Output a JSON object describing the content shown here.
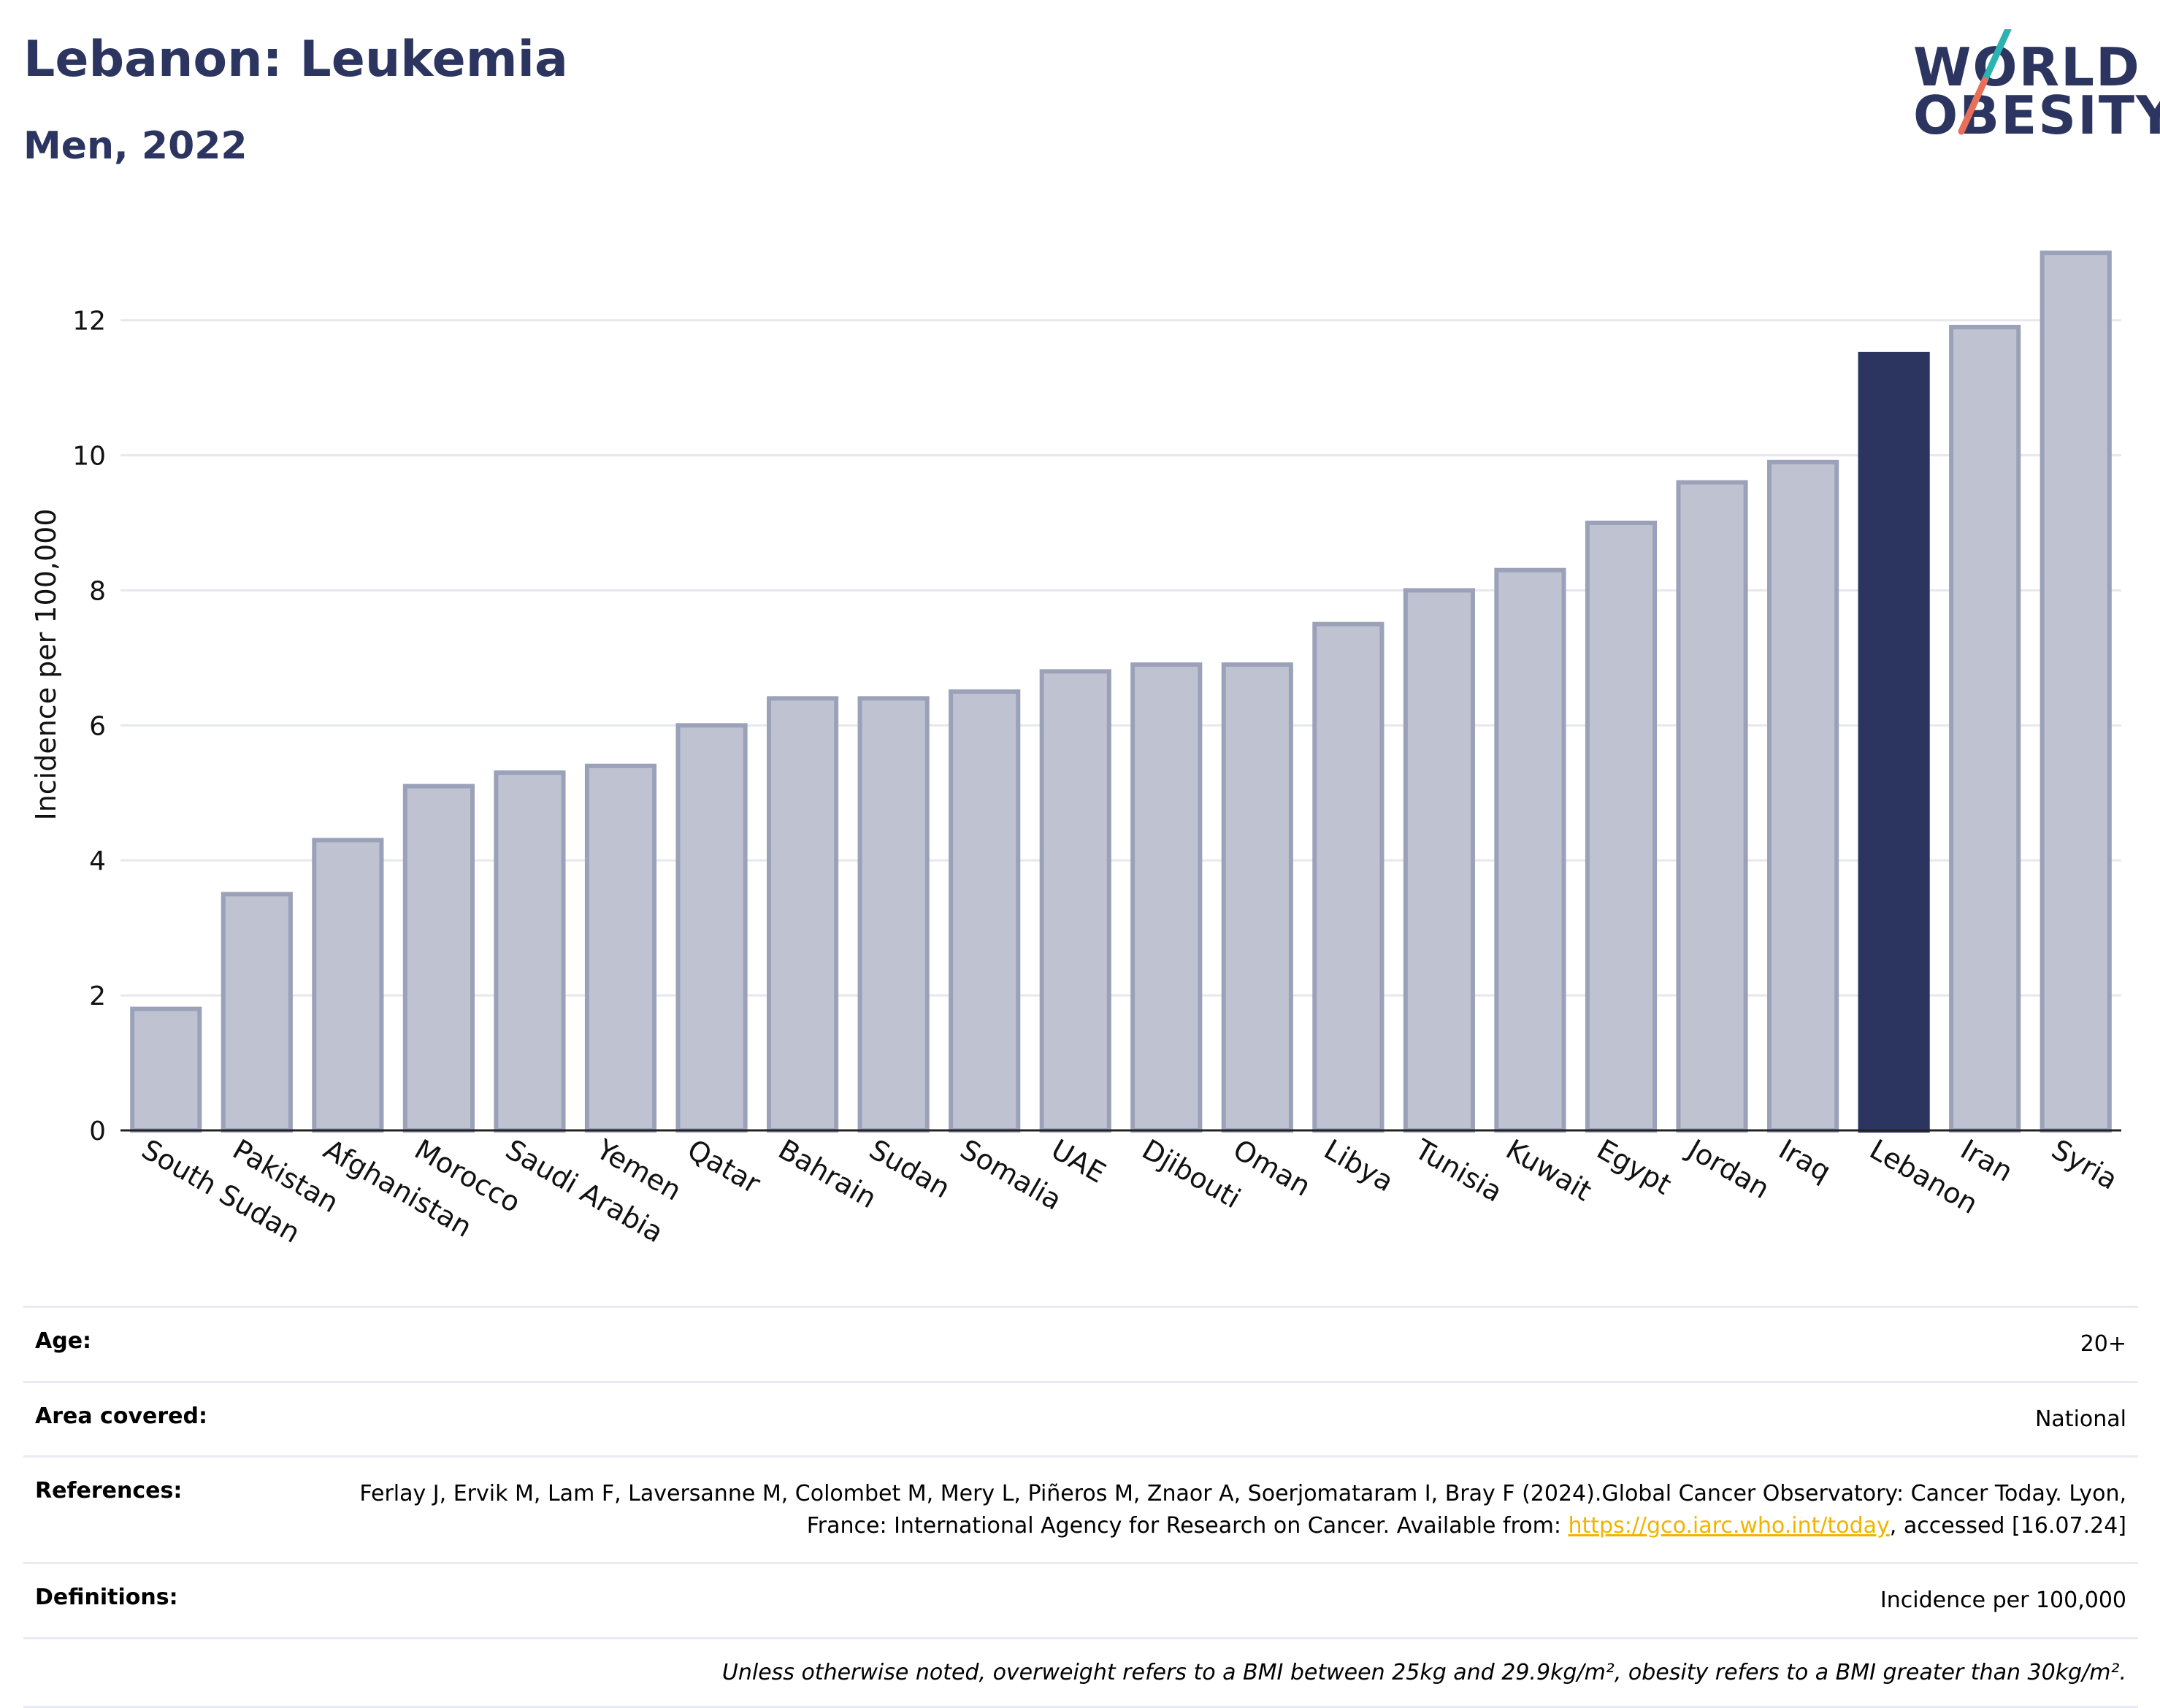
{
  "header": {
    "title": "Lebanon: Leukemia",
    "subtitle": "Men, 2022"
  },
  "logo": {
    "line1": "WORLD",
    "line2": "OBESITY",
    "accent_teal": "#2ab3b0",
    "accent_coral": "#e8705a"
  },
  "colors": {
    "bar": "#bfc3d1",
    "bar_border": "#9ba1b8",
    "highlight": "#2b3560",
    "grid": "#e6e8ee",
    "text": "#2b3560"
  },
  "chart_data": {
    "type": "bar",
    "ylabel": "Incidence per 100,000",
    "ylim": [
      0,
      13.5
    ],
    "yticks": [
      0,
      2,
      4,
      6,
      8,
      10,
      12
    ],
    "grid": true,
    "highlight": "Lebanon",
    "categories": [
      "South Sudan",
      "Pakistan",
      "Afghanistan",
      "Morocco",
      "Saudi Arabia",
      "Yemen",
      "Qatar",
      "Bahrain",
      "Sudan",
      "Somalia",
      "UAE",
      "Djibouti",
      "Oman",
      "Libya",
      "Tunisia",
      "Kuwait",
      "Egypt",
      "Jordan",
      "Iraq",
      "Lebanon",
      "Iran",
      "Syria"
    ],
    "values": [
      1.8,
      3.5,
      4.3,
      5.1,
      5.3,
      5.4,
      6.0,
      6.4,
      6.4,
      6.5,
      6.8,
      6.9,
      6.9,
      7.5,
      8.0,
      8.3,
      9.0,
      9.6,
      9.9,
      11.5,
      11.9,
      13.0
    ]
  },
  "info": {
    "age_label": "Age:",
    "age_value": "20+",
    "area_label": "Area covered:",
    "area_value": "National",
    "references_label": "References:",
    "references_text": "Ferlay J, Ervik M, Lam F, Laversanne M, Colombet M, Mery L, Piñeros M, Znaor A, Soerjomataram I, Bray F (2024).Global Cancer Observatory: Cancer Today. Lyon, France: International Agency for Research on Cancer. Available from:",
    "references_link": "https://gco.iarc.who.int/today",
    "references_suffix": ", accessed [16.07.24]",
    "definitions_label": "Definitions:",
    "definitions_value": "Incidence per 100,000",
    "note": "Unless otherwise noted, overweight refers to a BMI between 25kg and 29.9kg/m², obesity refers to a BMI greater than 30kg/m²."
  }
}
